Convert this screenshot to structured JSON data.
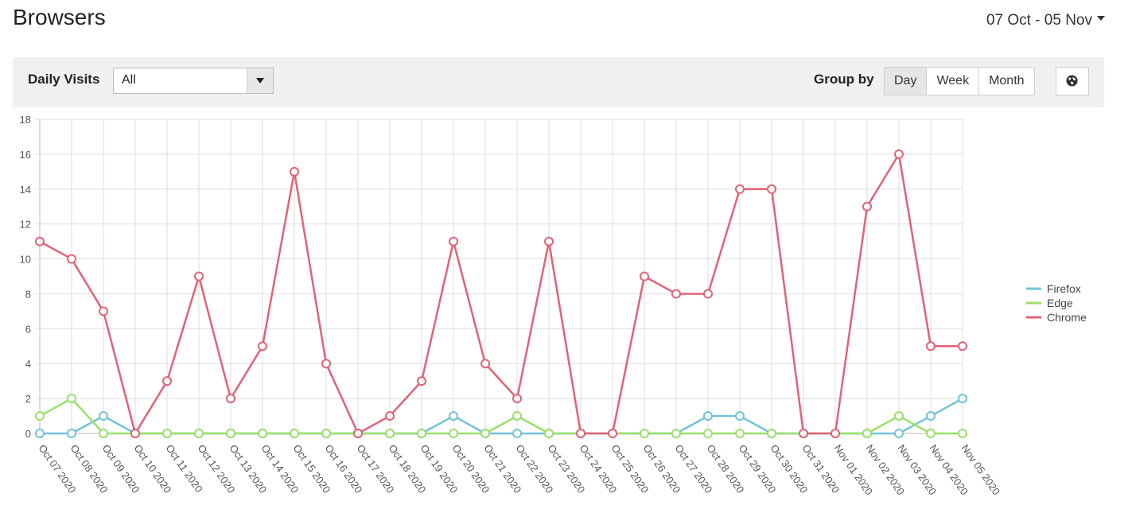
{
  "header": {
    "title": "Browsers",
    "date_range": "07 Oct - 05 Nov"
  },
  "toolbar": {
    "metric_label": "Daily Visits",
    "filter_value": "All",
    "group_by_label": "Group by",
    "group_options": [
      "Day",
      "Week",
      "Month"
    ],
    "group_selected": "Day"
  },
  "colors": {
    "firefox": "#72c3d7",
    "edge": "#9adf6a",
    "chrome": "#e06378",
    "grid": "#dddddd",
    "toolbar_bg": "#f0f0f0"
  },
  "icons": {
    "date_dropdown": "caret-down-icon",
    "select_dropdown": "caret-down-icon",
    "map_button": "globe-icon"
  },
  "chart_data": {
    "type": "line",
    "title": "",
    "xlabel": "",
    "ylabel": "",
    "ylim": [
      0,
      18
    ],
    "yticks": [
      0,
      2,
      4,
      6,
      8,
      10,
      12,
      14,
      16,
      18
    ],
    "grid": true,
    "legend_position": "right",
    "x": [
      "Oct 07 2020",
      "Oct 08 2020",
      "Oct 09 2020",
      "Oct 10 2020",
      "Oct 11 2020",
      "Oct 12 2020",
      "Oct 13 2020",
      "Oct 14 2020",
      "Oct 15 2020",
      "Oct 16 2020",
      "Oct 17 2020",
      "Oct 18 2020",
      "Oct 19 2020",
      "Oct 20 2020",
      "Oct 21 2020",
      "Oct 22 2020",
      "Oct 23 2020",
      "Oct 24 2020",
      "Oct 25 2020",
      "Oct 26 2020",
      "Oct 27 2020",
      "Oct 28 2020",
      "Oct 29 2020",
      "Oct 30 2020",
      "Oct 31 2020",
      "Nov 01 2020",
      "Nov 02 2020",
      "Nov 03 2020",
      "Nov 04 2020",
      "Nov 05 2020"
    ],
    "series": [
      {
        "name": "Firefox",
        "color": "#72c3d7",
        "values": [
          0,
          0,
          1,
          0,
          0,
          0,
          0,
          0,
          0,
          0,
          0,
          0,
          0,
          1,
          0,
          0,
          0,
          0,
          0,
          0,
          0,
          1,
          1,
          0,
          0,
          0,
          0,
          0,
          1,
          2
        ]
      },
      {
        "name": "Edge",
        "color": "#9adf6a",
        "values": [
          1,
          2,
          0,
          0,
          0,
          0,
          0,
          0,
          0,
          0,
          0,
          0,
          0,
          0,
          0,
          1,
          0,
          0,
          0,
          0,
          0,
          0,
          0,
          0,
          0,
          0,
          0,
          1,
          0,
          0
        ]
      },
      {
        "name": "Chrome",
        "color": "#e06378",
        "values": [
          11,
          10,
          7,
          0,
          3,
          9,
          2,
          5,
          15,
          4,
          0,
          1,
          3,
          11,
          4,
          2,
          11,
          0,
          0,
          9,
          8,
          8,
          14,
          14,
          0,
          0,
          13,
          16,
          5,
          5
        ]
      }
    ]
  }
}
